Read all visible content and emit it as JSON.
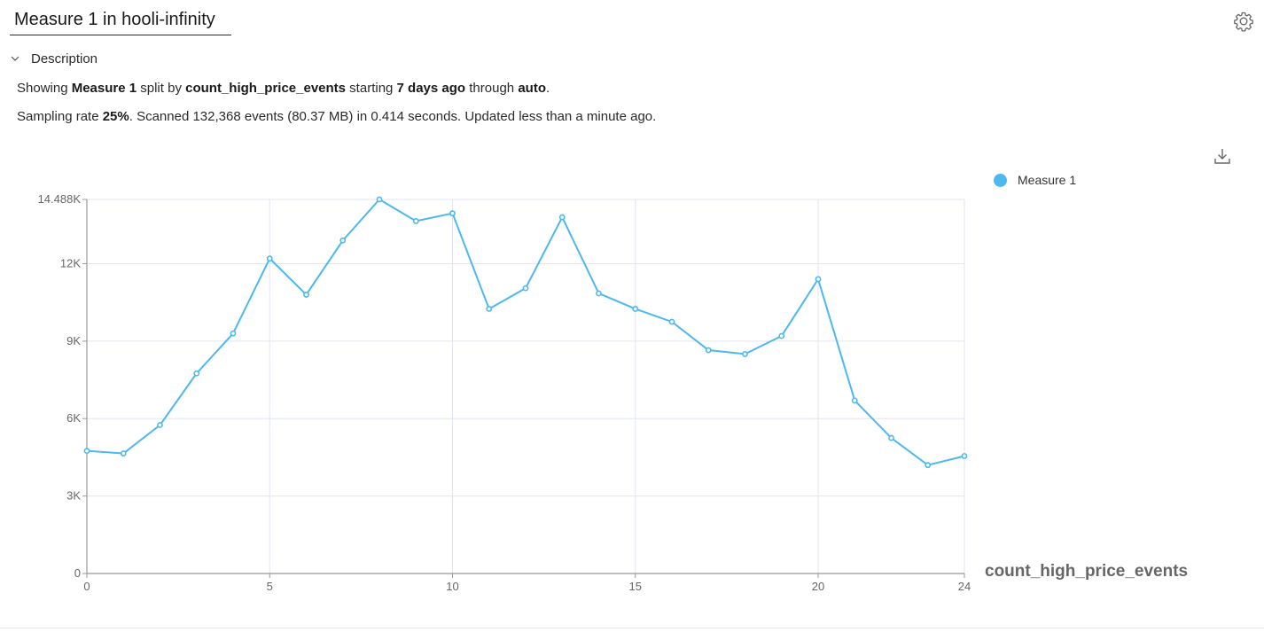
{
  "header": {
    "title_value": "Measure 1 in hooli-infinity",
    "settings_icon": "gear-icon"
  },
  "description": {
    "toggle_label": "Description",
    "toggle_icon": "chevron-down-icon",
    "line1": {
      "t1": "Showing ",
      "measure": "Measure 1",
      "t2": " split by ",
      "split": "count_high_price_events",
      "t3": " starting ",
      "start": "7 days ago",
      "t4": " through ",
      "end": "auto",
      "t5": "."
    },
    "line2": {
      "t1": "Sampling rate ",
      "rate": "25%",
      "t2": ". Scanned 132,368 events (80.37 MB) in 0.414 seconds. Updated less than a minute ago."
    }
  },
  "toolbar": {
    "download_icon": "download-icon"
  },
  "legend": {
    "items": [
      {
        "label": "Measure 1",
        "color": "#4db8f0"
      }
    ]
  },
  "chart_data": {
    "type": "line",
    "xlabel": "count_high_price_events",
    "ylabel": "",
    "x": [
      0,
      1,
      2,
      3,
      4,
      5,
      6,
      7,
      8,
      9,
      10,
      11,
      12,
      13,
      14,
      15,
      16,
      17,
      18,
      19,
      20,
      21,
      22,
      23,
      24
    ],
    "series": [
      {
        "name": "Measure 1",
        "color": "#4db8f0",
        "values": [
          4750,
          4650,
          5750,
          7750,
          9300,
          12200,
          10800,
          12900,
          14488,
          13650,
          13950,
          10250,
          11050,
          13800,
          10850,
          10250,
          9750,
          8650,
          8500,
          9200,
          11400,
          6700,
          5250,
          4200,
          4550
        ]
      }
    ],
    "xlim": [
      0,
      24
    ],
    "ylim": [
      0,
      14488
    ],
    "x_ticks": [
      0,
      5,
      10,
      15,
      20,
      24
    ],
    "y_ticks": [
      0,
      3000,
      6000,
      9000,
      12000,
      14488
    ],
    "y_tick_labels": [
      "0",
      "3K",
      "6K",
      "9K",
      "12K",
      "14.488K"
    ],
    "grid": true,
    "legend_position": "top-right"
  }
}
